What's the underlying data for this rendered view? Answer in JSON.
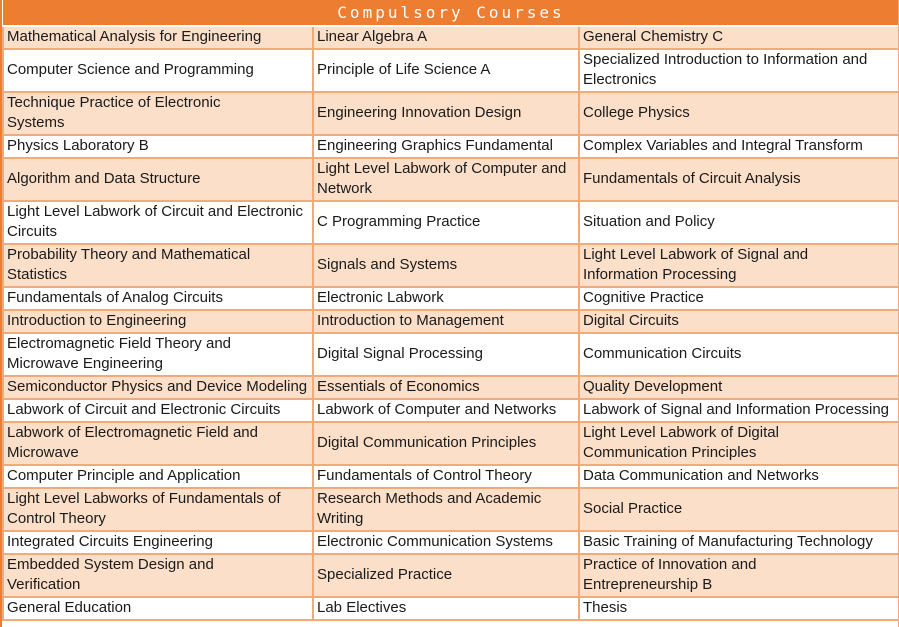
{
  "title": "Compulsory Courses",
  "colors": {
    "header_bg": "#ED7D31",
    "header_text": "#FFFFFF",
    "row_peach": "#FBDFC9",
    "row_white": "#FFFFFF",
    "border": "#F3A978",
    "text": "#1A1A1A"
  },
  "table": {
    "column_count": 3,
    "rows": [
      [
        "Mathematical Analysis for Engineering",
        "Linear Algebra A",
        "General Chemistry C"
      ],
      [
        "Computer Science and Programming",
        "Principle of Life Science A",
        "Specialized Introduction to Information and\nElectronics"
      ],
      [
        "Technique Practice of Electronic\nSystems",
        "Engineering Innovation Design",
        "College Physics"
      ],
      [
        "Physics Laboratory B",
        "Engineering Graphics Fundamental",
        "Complex Variables and Integral Transform"
      ],
      [
        "Algorithm and Data Structure",
        "Light Level Labwork of Computer and\nNetwork",
        "Fundamentals of Circuit Analysis"
      ],
      [
        "Light Level Labwork of Circuit and Electronic\nCircuits",
        "C Programming Practice",
        "Situation and Policy"
      ],
      [
        "Probability Theory and Mathematical\nStatistics",
        "Signals and Systems",
        "Light Level Labwork of Signal and\nInformation Processing"
      ],
      [
        "Fundamentals of Analog Circuits",
        "Electronic Labwork",
        "Cognitive Practice"
      ],
      [
        "Introduction to Engineering",
        "Introduction to Management",
        "Digital Circuits"
      ],
      [
        "Electromagnetic Field Theory and\nMicrowave Engineering",
        "Digital Signal Processing",
        "Communication Circuits"
      ],
      [
        "Semiconductor Physics and Device Modeling",
        "Essentials of Economics",
        "Quality Development"
      ],
      [
        "Labwork of Circuit and Electronic Circuits",
        "Labwork of Computer and Networks",
        "Labwork of Signal and Information Processing"
      ],
      [
        "Labwork of Electromagnetic Field and\nMicrowave",
        "Digital Communication Principles",
        "Light Level Labwork of Digital\nCommunication Principles"
      ],
      [
        "Computer Principle and Application",
        "Fundamentals of Control Theory",
        "Data Communication and Networks"
      ],
      [
        "Light Level Labworks of Fundamentals of\nControl Theory",
        "Research Methods and Academic\nWriting",
        "Social Practice"
      ],
      [
        "Integrated Circuits Engineering",
        "Electronic Communication Systems",
        "Basic Training of Manufacturing Technology"
      ],
      [
        "Embedded System Design and\nVerification",
        "Specialized Practice",
        "Practice of Innovation and\nEntrepreneurship B"
      ],
      [
        "General Education",
        "Lab Electives",
        "Thesis"
      ]
    ]
  }
}
